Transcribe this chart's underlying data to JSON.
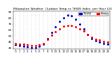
{
  "title": "Milwaukee Weather  Outdoor Temp vs THSW Index  per Hour (24 Hours)",
  "background_color": "#ffffff",
  "grid_color": "#c0c0c0",
  "hours": [
    0,
    1,
    2,
    3,
    4,
    5,
    6,
    7,
    8,
    9,
    10,
    11,
    12,
    13,
    14,
    15,
    16,
    17,
    18,
    19,
    20,
    21,
    22,
    23
  ],
  "temp_series": {
    "label": "Temp",
    "color": "#ff0000",
    "values": [
      38,
      37,
      36,
      35,
      34,
      34,
      35,
      38,
      44,
      51,
      57,
      62,
      66,
      68,
      67,
      65,
      62,
      58,
      53,
      48,
      45,
      43,
      41,
      40
    ]
  },
  "thsw_series": {
    "label": "THSW",
    "color": "#0000cc",
    "values": [
      35,
      34,
      33,
      32,
      31,
      31,
      33,
      37,
      46,
      56,
      65,
      74,
      80,
      85,
      84,
      78,
      70,
      62,
      53,
      46,
      42,
      40,
      38,
      36
    ]
  },
  "ylim": [
    28,
    92
  ],
  "xlim": [
    -0.5,
    23.5
  ],
  "ytick_values": [
    30,
    40,
    50,
    60,
    70,
    80,
    90
  ],
  "xtick_labels": [
    "0",
    "1",
    "2",
    "3",
    "4",
    "5",
    "6",
    "7",
    "8",
    "9",
    "10",
    "11",
    "12",
    "13",
    "14",
    "15",
    "16",
    "17",
    "18",
    "19",
    "20",
    "21",
    "22",
    "23"
  ],
  "marker_size": 1.2,
  "title_fontsize": 3.2,
  "tick_fontsize": 3.0,
  "legend_fontsize": 3.0,
  "figsize": [
    1.6,
    0.87
  ],
  "dpi": 100
}
